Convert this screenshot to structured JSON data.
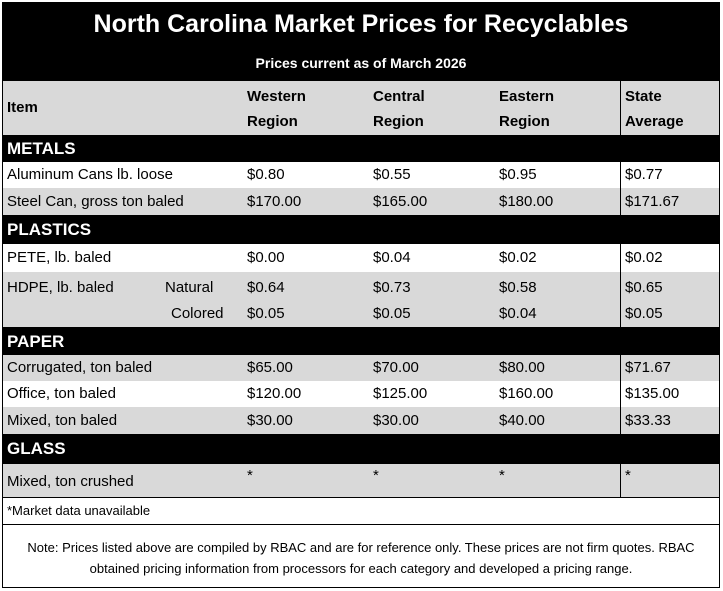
{
  "title": "North Carolina Market Prices for Recyclables",
  "subtitle": "Prices current as of March 2026",
  "header": {
    "item": "Item",
    "western": [
      "Western",
      "Region"
    ],
    "central": [
      "Central",
      "Region"
    ],
    "eastern": [
      "Eastern",
      "Region"
    ],
    "state": [
      "State",
      "Average"
    ]
  },
  "sections": {
    "metals": "METALS",
    "plastics": "PLASTICS",
    "paper": "PAPER",
    "glass": "GLASS"
  },
  "rows": {
    "aluminum": {
      "item": "Aluminum Cans lb. loose",
      "w": "$0.80",
      "c": "$0.55",
      "e": "$0.95",
      "s": "$0.77"
    },
    "steel": {
      "item": "Steel Can, gross ton baled",
      "w": "$170.00",
      "c": "$165.00",
      "e": "$180.00",
      "s": "$171.67"
    },
    "pete": {
      "item": "PETE, lb. baled",
      "w": "$0.00",
      "c": "$0.04",
      "e": "$0.02",
      "s": "$0.02"
    },
    "hdpe_natural": {
      "item": "HDPE, lb. baled",
      "sub": "Natural",
      "w": "$0.64",
      "c": "$0.73",
      "e": "$0.58",
      "s": "$0.65"
    },
    "hdpe_colored": {
      "sub": "Colored",
      "w": "$0.05",
      "c": "$0.05",
      "e": "$0.04",
      "s": "$0.05"
    },
    "corrugated": {
      "item": "Corrugated, ton baled",
      "w": "$65.00",
      "c": "$70.00",
      "e": "$80.00",
      "s": "$71.67"
    },
    "office": {
      "item": "Office, ton baled",
      "w": "$120.00",
      "c": "$125.00",
      "e": "$160.00",
      "s": "$135.00"
    },
    "mixed_paper": {
      "item": "Mixed, ton baled",
      "w": "$30.00",
      "c": "$30.00",
      "e": "$40.00",
      "s": "$33.33"
    },
    "mixed_glass": {
      "item": "Mixed, ton crushed",
      "w": "*",
      "c": "*",
      "e": "*",
      "s": "*"
    }
  },
  "footnote": "*Market data unavailable",
  "note": "Note: Prices listed above are compiled by RBAC and are for reference only. These prices are not firm quotes. RBAC obtained pricing information from processors for each category and developed a pricing range."
}
